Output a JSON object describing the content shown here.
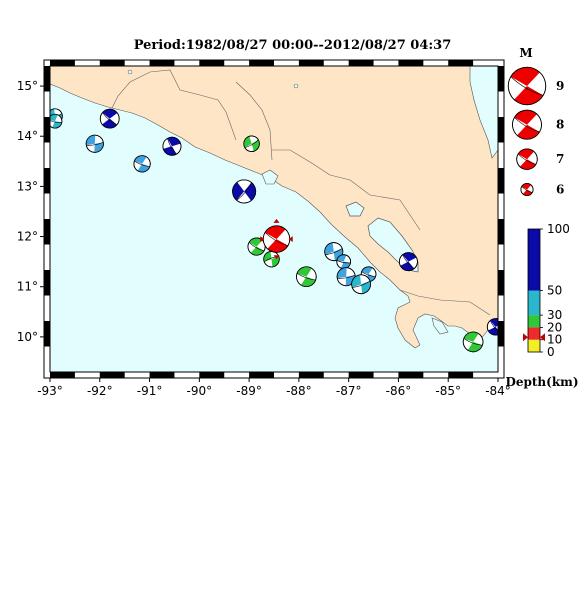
{
  "title": "Period:1982/08/27 00:00--2012/08/27 04:37",
  "map": {
    "lon_range": [
      -93,
      -84
    ],
    "lat_range": [
      9.3,
      15.4
    ],
    "x_ticks": [
      "-93°",
      "-92°",
      "-91°",
      "-90°",
      "-89°",
      "-88°",
      "-87°",
      "-86°",
      "-85°",
      "-84°"
    ],
    "y_ticks": [
      "10°",
      "11°",
      "12°",
      "13°",
      "14°",
      "15°"
    ],
    "colors": {
      "land": "#fde5c6",
      "sea": "#e2fdfe",
      "lake": "#e2fdfe",
      "coast": "#444444"
    }
  },
  "events": [
    {
      "lon": -92.9,
      "lat": 14.4,
      "mag": 6.3,
      "depth": 40,
      "color": "#2ab6cc",
      "rot": -20
    },
    {
      "lon": -92.9,
      "lat": 14.3,
      "mag": 6.2,
      "depth": 40,
      "color": "#2ab6cc",
      "rot": 10
    },
    {
      "lon": -91.8,
      "lat": 14.35,
      "mag": 6.8,
      "depth": 90,
      "color": "#0a0aa8",
      "rot": 40
    },
    {
      "lon": -92.1,
      "lat": 13.85,
      "mag": 6.6,
      "depth": 50,
      "color": "#3fa3e0",
      "rot": -10
    },
    {
      "lon": -91.15,
      "lat": 13.45,
      "mag": 6.5,
      "depth": 50,
      "color": "#3fa3e0",
      "rot": 20
    },
    {
      "lon": -90.55,
      "lat": 13.8,
      "mag": 6.7,
      "depth": 90,
      "color": "#0a0aa8",
      "rot": 60
    },
    {
      "lon": -88.95,
      "lat": 13.85,
      "mag": 6.4,
      "depth": 20,
      "color": "#30c838",
      "rot": -30
    },
    {
      "lon": -89.1,
      "lat": 12.9,
      "mag": 7.3,
      "depth": 90,
      "color": "#0a0aa8",
      "rot": -50
    },
    {
      "lon": -88.85,
      "lat": 11.8,
      "mag": 6.6,
      "depth": 20,
      "color": "#30c838",
      "rot": 30
    },
    {
      "lon": -88.55,
      "lat": 11.55,
      "mag": 6.4,
      "depth": 20,
      "color": "#30c838",
      "rot": 160
    },
    {
      "lon": -88.45,
      "lat": 11.95,
      "mag": 7.7,
      "depth": 10,
      "color": "#ee0000",
      "rot": 30
    },
    {
      "lon": -87.85,
      "lat": 11.2,
      "mag": 6.9,
      "depth": 20,
      "color": "#30c838",
      "rot": 20
    },
    {
      "lon": -87.3,
      "lat": 11.7,
      "mag": 6.7,
      "depth": 50,
      "color": "#3fa3e0",
      "rot": -20
    },
    {
      "lon": -87.1,
      "lat": 11.5,
      "mag": 6.2,
      "depth": 50,
      "color": "#3fa3e0",
      "rot": 10
    },
    {
      "lon": -87.05,
      "lat": 11.2,
      "mag": 6.7,
      "depth": 50,
      "color": "#3fa3e0",
      "rot": -10
    },
    {
      "lon": -86.6,
      "lat": 11.25,
      "mag": 6.3,
      "depth": 50,
      "color": "#3fa3e0",
      "rot": 20
    },
    {
      "lon": -86.75,
      "lat": 11.05,
      "mag": 6.8,
      "depth": 40,
      "color": "#2ab6cc",
      "rot": -20
    },
    {
      "lon": -85.8,
      "lat": 11.5,
      "mag": 6.7,
      "depth": 90,
      "color": "#0a0aa8",
      "rot": 50
    },
    {
      "lon": -84.5,
      "lat": 9.9,
      "mag": 6.9,
      "depth": 20,
      "color": "#30c838",
      "rot": 20
    },
    {
      "lon": -84.05,
      "lat": 10.2,
      "mag": 6.5,
      "depth": 90,
      "color": "#0a0aa8",
      "rot": 50
    }
  ],
  "legend": {
    "title": "M",
    "items": [
      {
        "label": "9",
        "mag": 9
      },
      {
        "label": "8",
        "mag": 8
      },
      {
        "label": "7",
        "mag": 7
      },
      {
        "label": "6",
        "mag": 6
      }
    ],
    "color": "#ee0000"
  },
  "colorbar": {
    "label": "Depth(km)",
    "ticks": [
      {
        "value": 100,
        "label": "100"
      },
      {
        "value": 50,
        "label": "50"
      },
      {
        "value": 30,
        "label": "30"
      },
      {
        "value": 20,
        "label": "20"
      },
      {
        "value": 10,
        "label": "10"
      },
      {
        "value": 0,
        "label": "0"
      }
    ],
    "bands": [
      {
        "from": 0,
        "to": 10,
        "color": "#f2ee27"
      },
      {
        "from": 10,
        "to": 20,
        "color": "#ee2a2a"
      },
      {
        "from": 20,
        "to": 30,
        "color": "#30c838"
      },
      {
        "from": 30,
        "to": 50,
        "color": "#2ab6cc"
      },
      {
        "from": 50,
        "to": 100,
        "color": "#0a0aa8"
      }
    ],
    "marker_value": 12
  }
}
